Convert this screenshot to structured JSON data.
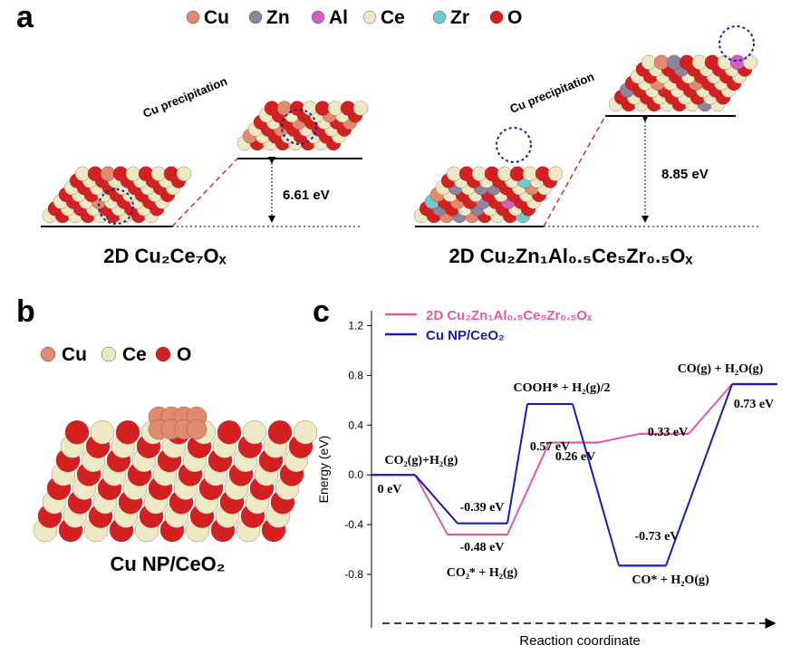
{
  "panel_a": {
    "label": "a",
    "legend": [
      "Cu",
      "Zn",
      "Al",
      "Ce",
      "Zr",
      "O"
    ],
    "left": {
      "annotation": "Cu precipitation",
      "energy": "6.61 eV",
      "caption": "2D Cu₂Ce₇Oₓ"
    },
    "right": {
      "annotation": "Cu precipitation",
      "energy": "8.85 eV",
      "caption": "2D Cu₂Zn₁Al₀.₅Ce₅Zr₀.₅Oₓ"
    }
  },
  "panel_b": {
    "label": "b",
    "legend": [
      "Cu",
      "Ce",
      "O"
    ],
    "caption": "Cu NP/CeO₂"
  },
  "panel_c_label": "c",
  "chart_data": {
    "type": "energy-profile",
    "ylabel": "Energy (eV)",
    "xlabel": "Reaction coordinate",
    "categories": [
      "CO₂(g)+H₂(g)",
      "CO₂* + H₂(g)",
      "COOH* + H₂(g)/2",
      "CO* + H₂O(g)",
      "CO(g) + H₂O(g)"
    ],
    "ylim": [
      -1.23,
      1.32
    ],
    "yticks": [
      {
        "value": -0.8,
        "label": "-0.8"
      },
      {
        "value": -0.4,
        "label": "-0.4"
      },
      {
        "value": 0,
        "label": "0.0"
      },
      {
        "value": 0.4,
        "label": "0.4"
      },
      {
        "value": 0.8,
        "label": "0.8"
      },
      {
        "value": 1.2,
        "label": "1.2"
      }
    ],
    "series": [
      {
        "name": "2D Cu₂Zn₁Al₀.₅Ce₅Zr₀.₅Oₓ",
        "color": "#e8579f",
        "values": [
          0,
          -0.48,
          0.26,
          0.33,
          0.73
        ],
        "value_labels": [
          null,
          "-0.48 eV",
          "0.26 eV",
          "0.33 eV",
          null
        ]
      },
      {
        "name": "Cu NP/CeO₂",
        "color": "#1a1ab8",
        "values": [
          0,
          -0.39,
          0.57,
          -0.73,
          0.73
        ],
        "value_labels": [
          "0 eV",
          "-0.39 eV",
          "0.57 eV",
          "-0.73 eV",
          "0.73 eV"
        ]
      }
    ]
  }
}
